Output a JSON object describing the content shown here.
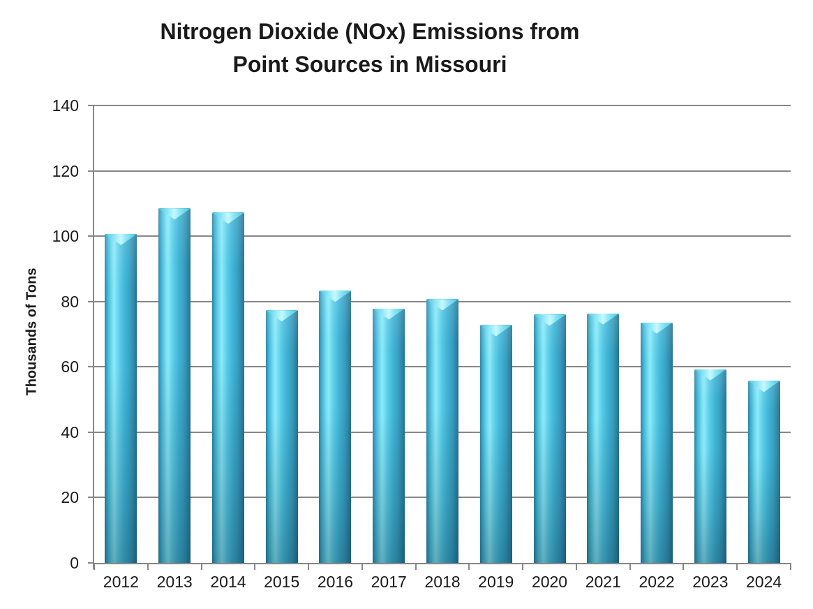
{
  "page": {
    "background": "#ffffff"
  },
  "title": {
    "line1": "Nitrogen Dioxide (NOx) Emissions from",
    "line2": "Point Sources in Missouri"
  },
  "chart_data": {
    "type": "bar",
    "title": "Nitrogen Dioxide (NOx) Emissions from Point Sources in Missouri",
    "categories": [
      "2012",
      "2013",
      "2014",
      "2015",
      "2016",
      "2017",
      "2018",
      "2019",
      "2020",
      "2021",
      "2022",
      "2023",
      "2024"
    ],
    "values": [
      100.7,
      108.5,
      107.2,
      77.3,
      83.3,
      77.9,
      80.7,
      72.8,
      76.0,
      76.4,
      73.6,
      59.3,
      55.7
    ],
    "xlabel": "",
    "ylabel": "Thousands of Tons",
    "ylim": [
      0,
      140
    ],
    "y_ticks": [
      0,
      20,
      40,
      60,
      80,
      100,
      120,
      140
    ],
    "grid": "horizontal",
    "legend": "none",
    "colors": {
      "bar_main": "#3fb6d8",
      "bar_highlight": "#8ceaf8",
      "bar_dark": "#2a7c9b",
      "gridline": "#878787",
      "axis": "#878787",
      "text": "#1a1a1a",
      "background": "#ffffff"
    }
  }
}
